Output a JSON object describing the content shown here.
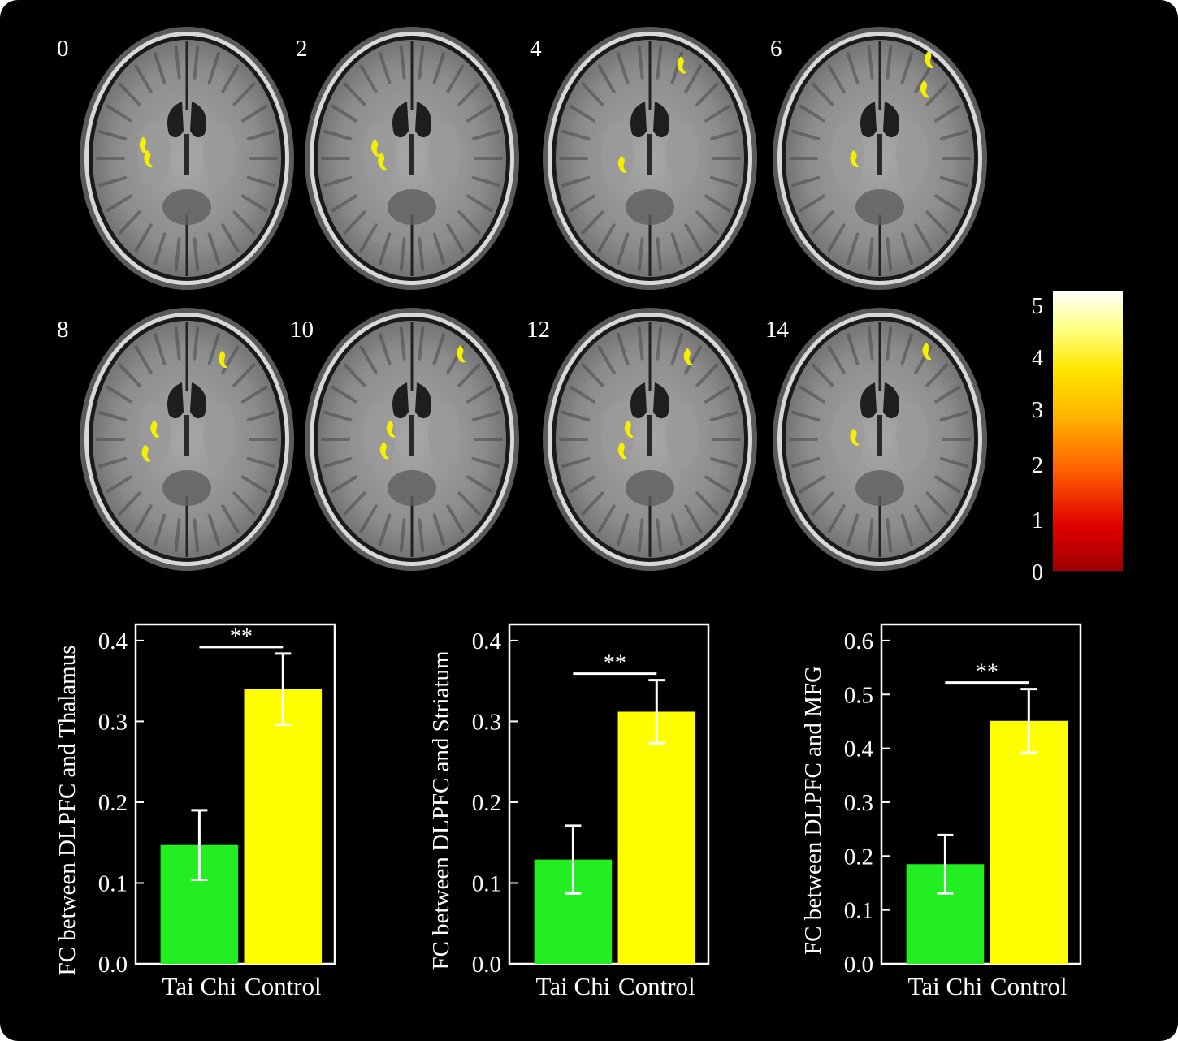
{
  "slices": [
    {
      "label": "0",
      "blobs": [
        [
          0.3,
          0.45
        ],
        [
          0.32,
          0.5
        ]
      ]
    },
    {
      "label": "2",
      "blobs": [
        [
          0.33,
          0.46
        ],
        [
          0.36,
          0.51
        ]
      ]
    },
    {
      "label": "4",
      "blobs": [
        [
          0.37,
          0.52
        ],
        [
          0.64,
          0.15
        ]
      ]
    },
    {
      "label": "6",
      "blobs": [
        [
          0.38,
          0.5
        ],
        [
          0.7,
          0.24
        ],
        [
          0.72,
          0.13
        ]
      ]
    },
    {
      "label": "8",
      "blobs": [
        [
          0.35,
          0.46
        ],
        [
          0.31,
          0.55
        ],
        [
          0.66,
          0.2
        ]
      ]
    },
    {
      "label": "10",
      "blobs": [
        [
          0.4,
          0.46
        ],
        [
          0.37,
          0.54
        ],
        [
          0.72,
          0.18
        ]
      ]
    },
    {
      "label": "12",
      "blobs": [
        [
          0.4,
          0.46
        ],
        [
          0.37,
          0.54
        ],
        [
          0.67,
          0.19
        ]
      ]
    },
    {
      "label": "14",
      "blobs": [
        [
          0.38,
          0.49
        ],
        [
          0.71,
          0.17
        ]
      ]
    }
  ],
  "colorbar": {
    "ticks": [
      "5",
      "4",
      "3",
      "2",
      "1",
      "0"
    ]
  },
  "colors": {
    "tai_chi": "#22ee22",
    "control": "#ffff00",
    "blob": "#f4f000"
  },
  "chart_data": [
    {
      "type": "bar",
      "categories": [
        "Tai Chi",
        "Control"
      ],
      "values": [
        0.147,
        0.34
      ],
      "errors": [
        0.043,
        0.044
      ],
      "ylabel": "FC between DLPFC and Thalamus",
      "ylim": [
        0,
        0.42
      ],
      "yticks": [
        "0.0",
        "0.1",
        "0.2",
        "0.3",
        "0.4"
      ],
      "significance": "**"
    },
    {
      "type": "bar",
      "categories": [
        "Tai Chi",
        "Control"
      ],
      "values": [
        0.129,
        0.312
      ],
      "errors": [
        0.042,
        0.039
      ],
      "ylabel": "FC between DLPFC and Striatum",
      "ylim": [
        0,
        0.42
      ],
      "yticks": [
        "0.0",
        "0.1",
        "0.2",
        "0.3",
        "0.4"
      ],
      "significance": "**"
    },
    {
      "type": "bar",
      "categories": [
        "Tai Chi",
        "Control"
      ],
      "values": [
        0.185,
        0.451
      ],
      "errors": [
        0.054,
        0.059
      ],
      "ylabel": "FC between DLPFC and MFG",
      "ylim": [
        0,
        0.63
      ],
      "yticks": [
        "0.0",
        "0.1",
        "0.2",
        "0.3",
        "0.4",
        "0.5",
        "0.6"
      ],
      "significance": "**"
    }
  ]
}
